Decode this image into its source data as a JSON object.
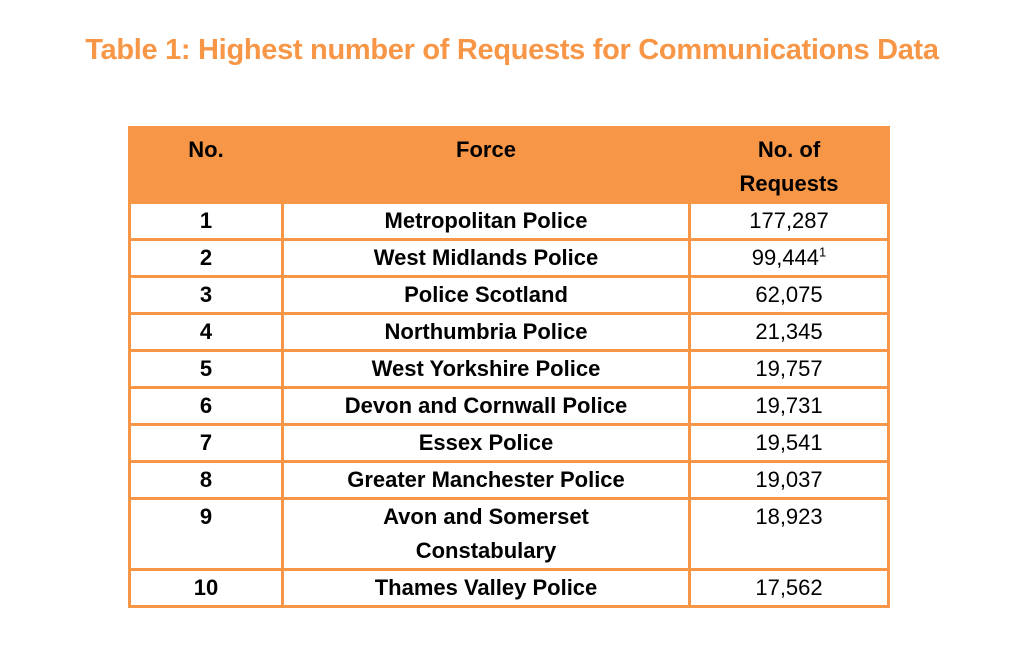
{
  "document": {
    "title": "Table 1: Highest number of Requests for Communications Data",
    "accent_color": "#f79646"
  },
  "table": {
    "headers": {
      "no": "No.",
      "force": "Force",
      "requests_line1": "No. of",
      "requests_line2": "Requests"
    },
    "rows": [
      {
        "no": "1",
        "force": "Metropolitan Police",
        "requests": "177,287",
        "footnote": ""
      },
      {
        "no": "2",
        "force": "West Midlands Police",
        "requests": "99,444",
        "footnote": "1"
      },
      {
        "no": "3",
        "force": "Police Scotland",
        "requests": "62,075",
        "footnote": ""
      },
      {
        "no": "4",
        "force": "Northumbria Police",
        "requests": "21,345",
        "footnote": ""
      },
      {
        "no": "5",
        "force": "West Yorkshire Police",
        "requests": "19,757",
        "footnote": ""
      },
      {
        "no": "6",
        "force": "Devon and Cornwall Police",
        "requests": "19,731",
        "footnote": ""
      },
      {
        "no": "7",
        "force": "Essex Police",
        "requests": "19,541",
        "footnote": ""
      },
      {
        "no": "8",
        "force": "Greater Manchester Police",
        "requests": "19,037",
        "footnote": ""
      },
      {
        "no": "9",
        "force": "Avon and Somerset Constabulary",
        "force_line1": "Avon and Somerset",
        "force_line2": "Constabulary",
        "requests": "18,923",
        "footnote": ""
      },
      {
        "no": "10",
        "force": "Thames Valley Police",
        "requests": "17,562",
        "footnote": ""
      }
    ]
  }
}
